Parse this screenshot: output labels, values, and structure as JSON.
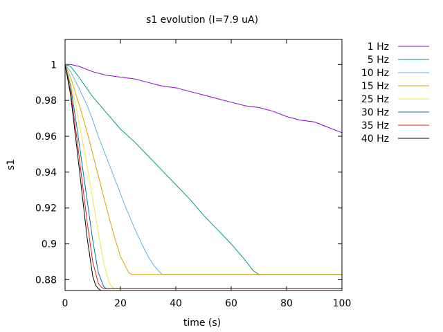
{
  "chart_data": {
    "type": "line",
    "title": "s1 evolution (I=7.9 uA)",
    "xlabel": "time (s)",
    "ylabel": "s1",
    "xlim": [
      0,
      100
    ],
    "ylim": [
      0.874,
      1.014
    ],
    "xticks": [
      0,
      20,
      40,
      60,
      80,
      100
    ],
    "yticks": [
      0.88,
      0.9,
      0.92,
      0.94,
      0.96,
      0.98,
      1
    ],
    "xtick_labels": [
      "0",
      "20",
      "40",
      "60",
      "80",
      "100"
    ],
    "ytick_labels": [
      "0.88",
      "0.9",
      "0.92",
      "0.94",
      "0.96",
      "0.98",
      "1"
    ],
    "grid": false,
    "legend_position": "outside-right",
    "series": [
      {
        "name": "1 Hz",
        "color": "#9400d3",
        "x": [
          0,
          2,
          5,
          10,
          15,
          20,
          25,
          30,
          35,
          40,
          45,
          50,
          55,
          60,
          65,
          70,
          75,
          80,
          85,
          90,
          95,
          100
        ],
        "y": [
          1.0,
          1.0,
          0.999,
          0.996,
          0.994,
          0.993,
          0.992,
          0.99,
          0.988,
          0.987,
          0.985,
          0.983,
          0.981,
          0.979,
          0.977,
          0.976,
          0.974,
          0.971,
          0.969,
          0.968,
          0.965,
          0.962
        ]
      },
      {
        "name": "5 Hz",
        "color": "#009e73",
        "x": [
          0,
          2,
          5,
          10,
          15,
          20,
          25,
          30,
          35,
          40,
          45,
          50,
          55,
          60,
          65,
          68,
          70,
          100
        ],
        "y": [
          1.0,
          0.999,
          0.993,
          0.982,
          0.973,
          0.964,
          0.957,
          0.949,
          0.941,
          0.933,
          0.925,
          0.916,
          0.908,
          0.9,
          0.891,
          0.885,
          0.883,
          0.883
        ]
      },
      {
        "name": "10 Hz",
        "color": "#56b4e9",
        "x": [
          0,
          2,
          5,
          8,
          10,
          12,
          15,
          18,
          20,
          22,
          25,
          28,
          30,
          32,
          35,
          100
        ],
        "y": [
          1.0,
          0.996,
          0.987,
          0.977,
          0.969,
          0.96,
          0.948,
          0.936,
          0.928,
          0.92,
          0.909,
          0.899,
          0.893,
          0.888,
          0.883,
          0.883
        ]
      },
      {
        "name": "15 Hz",
        "color": "#e69f00",
        "x": [
          0,
          2,
          4,
          6,
          8,
          10,
          12,
          14,
          16,
          18,
          20,
          22,
          23,
          24,
          100
        ],
        "y": [
          1.0,
          0.993,
          0.983,
          0.973,
          0.962,
          0.95,
          0.938,
          0.926,
          0.914,
          0.903,
          0.893,
          0.887,
          0.884,
          0.883,
          0.883
        ]
      },
      {
        "name": "25 Hz",
        "color": "#f0e442",
        "x": [
          0,
          2,
          4,
          6,
          8,
          10,
          12,
          14,
          16,
          17,
          18,
          100
        ],
        "y": [
          1.0,
          0.99,
          0.976,
          0.96,
          0.943,
          0.925,
          0.906,
          0.889,
          0.878,
          0.876,
          0.875,
          0.875
        ]
      },
      {
        "name": "30 Hz",
        "color": "#0072b2",
        "x": [
          0,
          2,
          4,
          6,
          8,
          10,
          12,
          14,
          15,
          100
        ],
        "y": [
          1.0,
          0.988,
          0.968,
          0.946,
          0.924,
          0.902,
          0.884,
          0.876,
          0.875,
          0.875
        ]
      },
      {
        "name": "35 Hz",
        "color": "#e51e10",
        "x": [
          0,
          2,
          4,
          6,
          8,
          10,
          12,
          13,
          14,
          100
        ],
        "y": [
          1.0,
          0.985,
          0.962,
          0.937,
          0.912,
          0.89,
          0.878,
          0.876,
          0.875,
          0.875
        ]
      },
      {
        "name": "40 Hz",
        "color": "#000000",
        "x": [
          0,
          2,
          4,
          6,
          8,
          10,
          11,
          12,
          13,
          100
        ],
        "y": [
          1.0,
          0.983,
          0.957,
          0.93,
          0.903,
          0.882,
          0.877,
          0.875,
          0.874,
          0.874
        ]
      }
    ]
  }
}
